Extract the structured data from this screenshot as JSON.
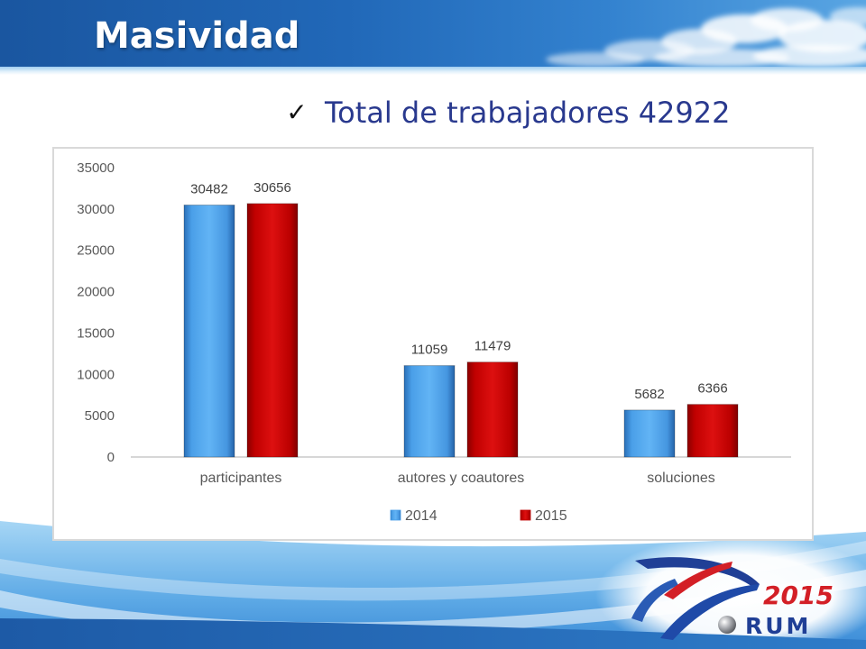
{
  "slide": {
    "title": "Masividad",
    "bullet_icon": "check-icon",
    "bullet_text": "Total de trabajadores 42922"
  },
  "logo": {
    "year": "2015",
    "name": "RUM"
  },
  "colors": {
    "header": "#1d5ea9",
    "title": "#ffffff",
    "bullet_text": "#29398e",
    "logo_red": "#d31f26",
    "logo_blue": "#203f96"
  },
  "chart_data": {
    "type": "bar",
    "categories": [
      "participantes",
      "autores y coautores",
      "soluciones"
    ],
    "series": [
      {
        "name": "2014",
        "values": [
          30482,
          11059,
          5682
        ],
        "color": "#4a9fe8"
      },
      {
        "name": "2015",
        "values": [
          30656,
          11479,
          6366
        ],
        "color": "#c00000"
      }
    ],
    "yticks": [
      0,
      5000,
      10000,
      15000,
      20000,
      25000,
      30000,
      35000
    ],
    "ylim": [
      0,
      35000
    ],
    "data_labels": true,
    "legend": "bottom",
    "grid": false
  }
}
